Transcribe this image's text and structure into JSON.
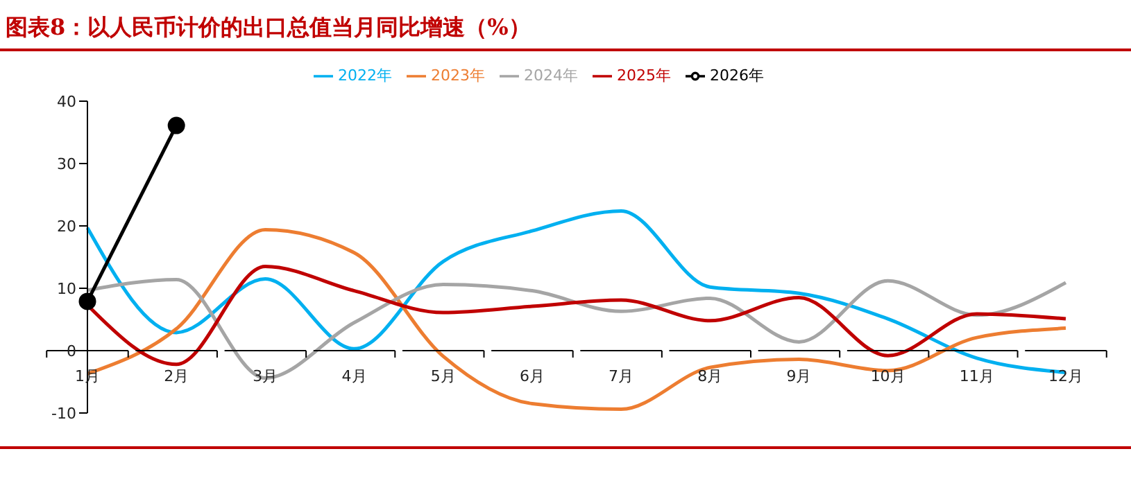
{
  "chart_data": {
    "type": "line",
    "title": "图表8：以人民币计价的出口总值当月同比增速（%）",
    "categories": [
      "1月",
      "2月",
      "3月",
      "4月",
      "5月",
      "6月",
      "7月",
      "8月",
      "9月",
      "10月",
      "11月",
      "12月"
    ],
    "series": [
      {
        "name": "2022年",
        "color": "#00b0f0",
        "marker": "none",
        "values": [
          19.7,
          2.9,
          11.5,
          0.3,
          14.3,
          19.2,
          22.4,
          10.2,
          9.2,
          5.1,
          -1.2,
          -3.5
        ]
      },
      {
        "name": "2023年",
        "color": "#ed7d31",
        "marker": "none",
        "values": [
          -3.7,
          3.5,
          19.4,
          15.7,
          -0.9,
          -8.5,
          -9.4,
          -2.7,
          -1.4,
          -3.2,
          2.1,
          3.6
        ]
      },
      {
        "name": "2024年",
        "color": "#a5a5a5",
        "marker": "none",
        "values": [
          9.7,
          11.4,
          -4.4,
          4.5,
          10.6,
          9.6,
          6.3,
          8.4,
          1.4,
          11.2,
          5.7,
          10.9
        ]
      },
      {
        "name": "2025年",
        "color": "#c00000",
        "marker": "none",
        "values": [
          7.3,
          -2.2,
          13.5,
          9.6,
          6.1,
          7.1,
          8.1,
          4.8,
          8.5,
          -0.8,
          5.9,
          5.1
        ]
      },
      {
        "name": "2026年",
        "color": "#000000",
        "marker": "circle",
        "values": [
          7.9,
          36.1,
          null,
          null,
          null,
          null,
          null,
          null,
          null,
          null,
          null,
          null
        ]
      }
    ],
    "ylim": [
      -10,
      40
    ],
    "yticks": [
      -10,
      0,
      10,
      20,
      30,
      40
    ],
    "grid": false,
    "legend": "top",
    "line_style": "solid"
  }
}
